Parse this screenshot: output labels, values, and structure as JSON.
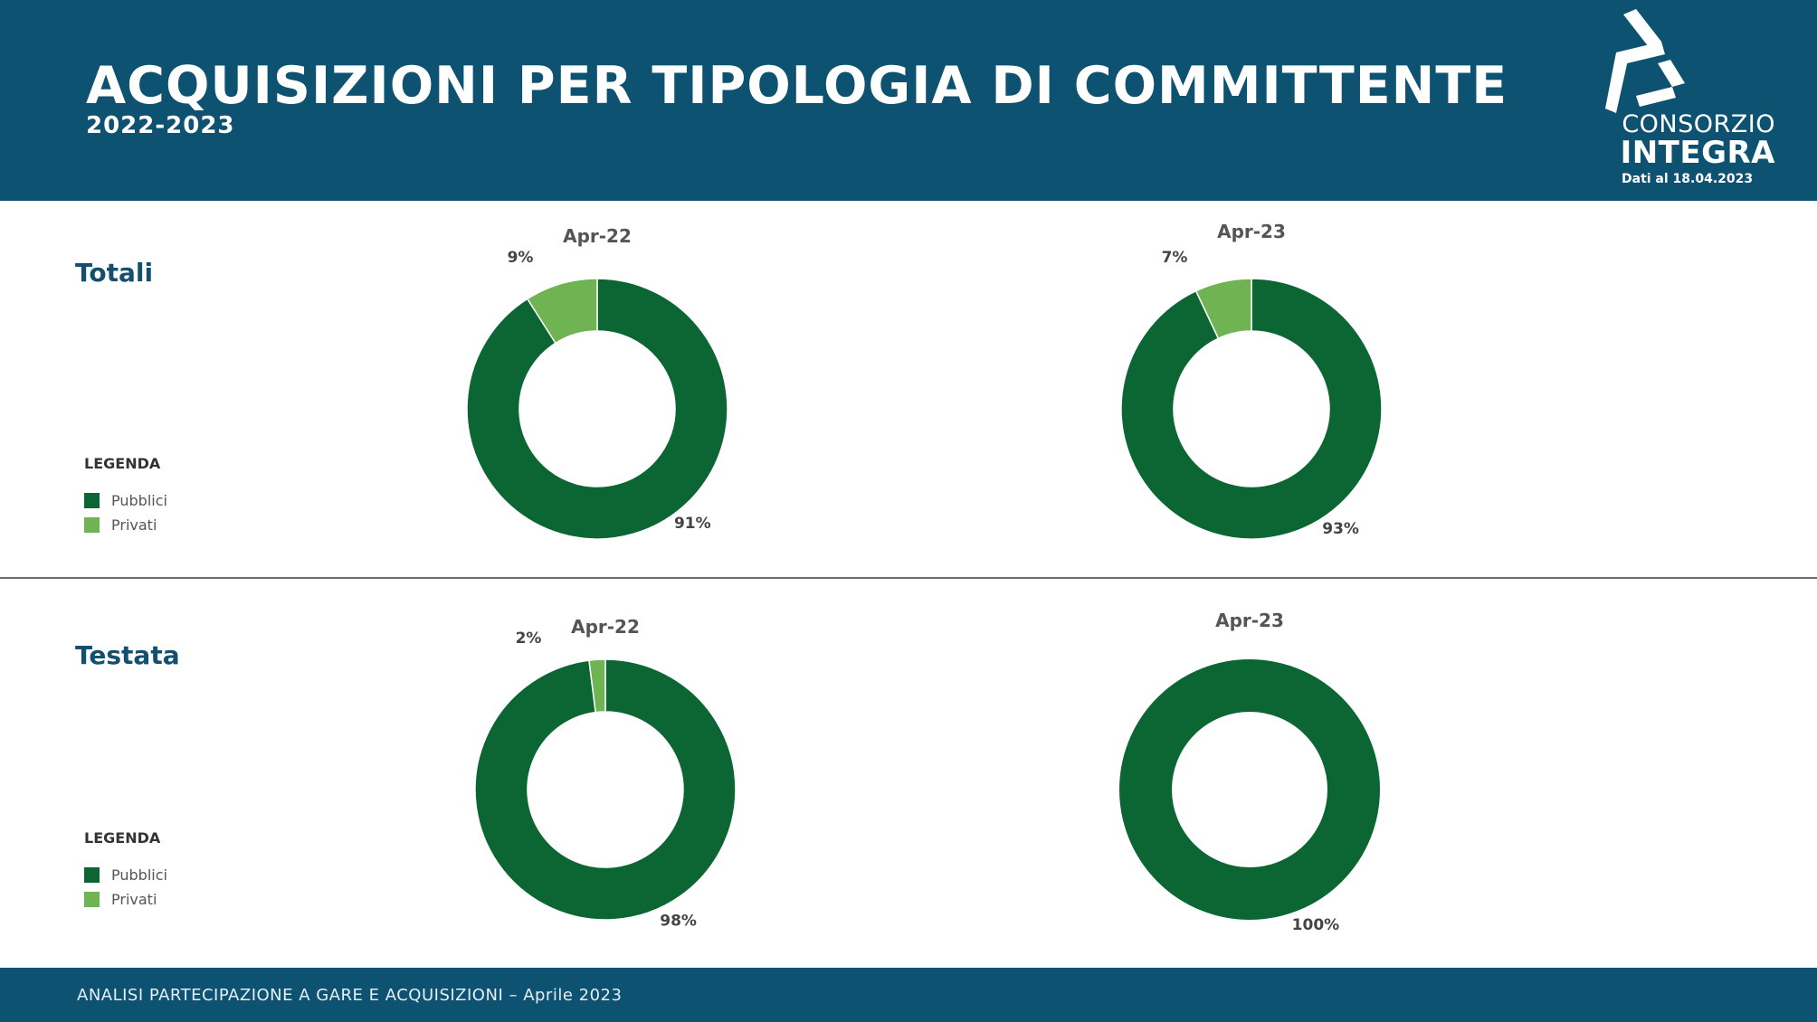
{
  "header": {
    "title": "ACQUISIZIONI PER TIPOLOGIA DI COMMITTENTE",
    "subtitle": "2022-2023",
    "brand_line1": "CONSORZIO",
    "brand_line2": "INTEGRA",
    "data_date": "Dati al 18.04.2023"
  },
  "colors": {
    "header_bg": "#0e5272",
    "pubblici": "#0b6634",
    "privati": "#6fb353",
    "row_label": "#14506e"
  },
  "rows": [
    {
      "label": "Totali",
      "legend": {
        "title": "LEGENDA",
        "items": [
          "Pubblici",
          "Privati"
        ]
      }
    },
    {
      "label": "Testata",
      "legend": {
        "title": "LEGENDA",
        "items": [
          "Pubblici",
          "Privati"
        ]
      }
    }
  ],
  "chart_data": [
    {
      "type": "pie",
      "variant": "donut",
      "group": "Totali",
      "title": "Apr-22",
      "categories": [
        "Pubblici",
        "Privati"
      ],
      "values": [
        91,
        9
      ],
      "labels": [
        "91%",
        "9%"
      ]
    },
    {
      "type": "pie",
      "variant": "donut",
      "group": "Totali",
      "title": "Apr-23",
      "categories": [
        "Pubblici",
        "Privati"
      ],
      "values": [
        93,
        7
      ],
      "labels": [
        "93%",
        "7%"
      ]
    },
    {
      "type": "pie",
      "variant": "donut",
      "group": "Testata",
      "title": "Apr-22",
      "categories": [
        "Pubblici",
        "Privati"
      ],
      "values": [
        98,
        2
      ],
      "labels": [
        "98%",
        "2%"
      ]
    },
    {
      "type": "pie",
      "variant": "donut",
      "group": "Testata",
      "title": "Apr-23",
      "categories": [
        "Pubblici",
        "Privati"
      ],
      "values": [
        100,
        0
      ],
      "labels": [
        "100%",
        ""
      ]
    }
  ],
  "footer": {
    "text": "ANALISI PARTECIPAZIONE A GARE E ACQUISIZIONI – Aprile 2023"
  }
}
